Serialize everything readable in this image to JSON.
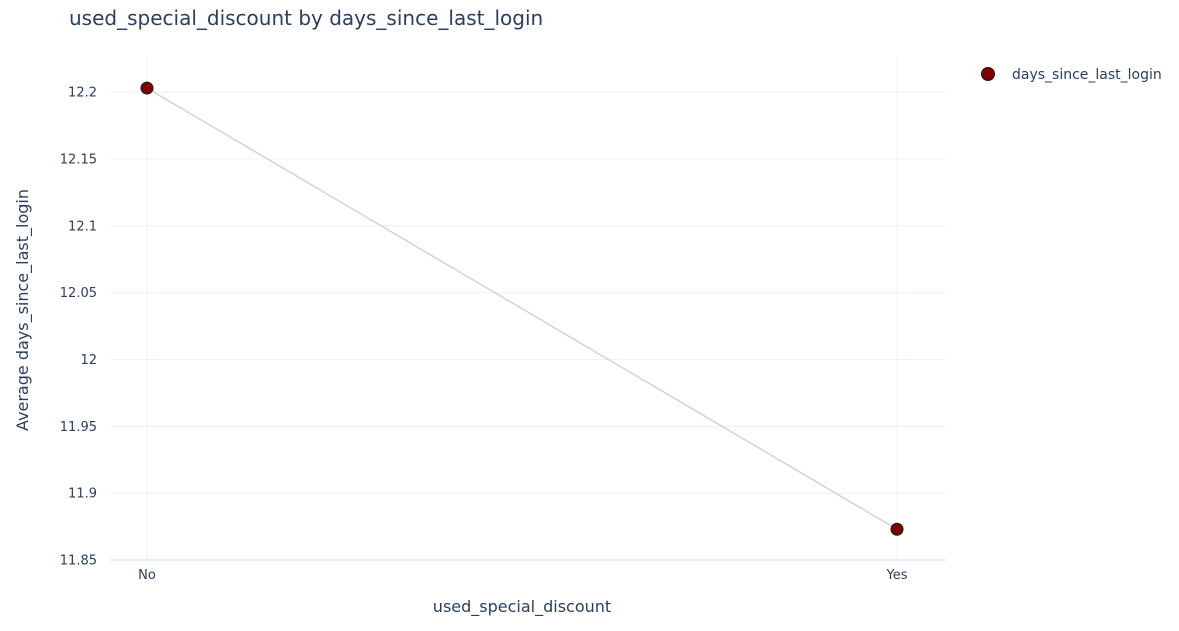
{
  "chart_data": {
    "type": "line",
    "title": "used_special_discount by days_since_last_login",
    "xlabel": "used_special_discount",
    "ylabel": "Average days_since_last_login",
    "categories": [
      "No",
      "Yes"
    ],
    "series": [
      {
        "name": "days_since_last_login",
        "values": [
          12.203,
          11.873
        ],
        "marker_color": "#800000",
        "marker_edge_color": "#1a1a1a",
        "line_color": "#d3d3d3"
      }
    ],
    "ylim": [
      11.85,
      12.227
    ],
    "yticks": [
      11.85,
      11.9,
      11.95,
      12,
      12.05,
      12.1,
      12.15,
      12.2
    ],
    "ytick_labels": [
      "11.85",
      "11.9",
      "11.95",
      "12",
      "12.05",
      "12.1",
      "12.15",
      "12.2"
    ],
    "grid": true,
    "legend_position": "top-right"
  }
}
